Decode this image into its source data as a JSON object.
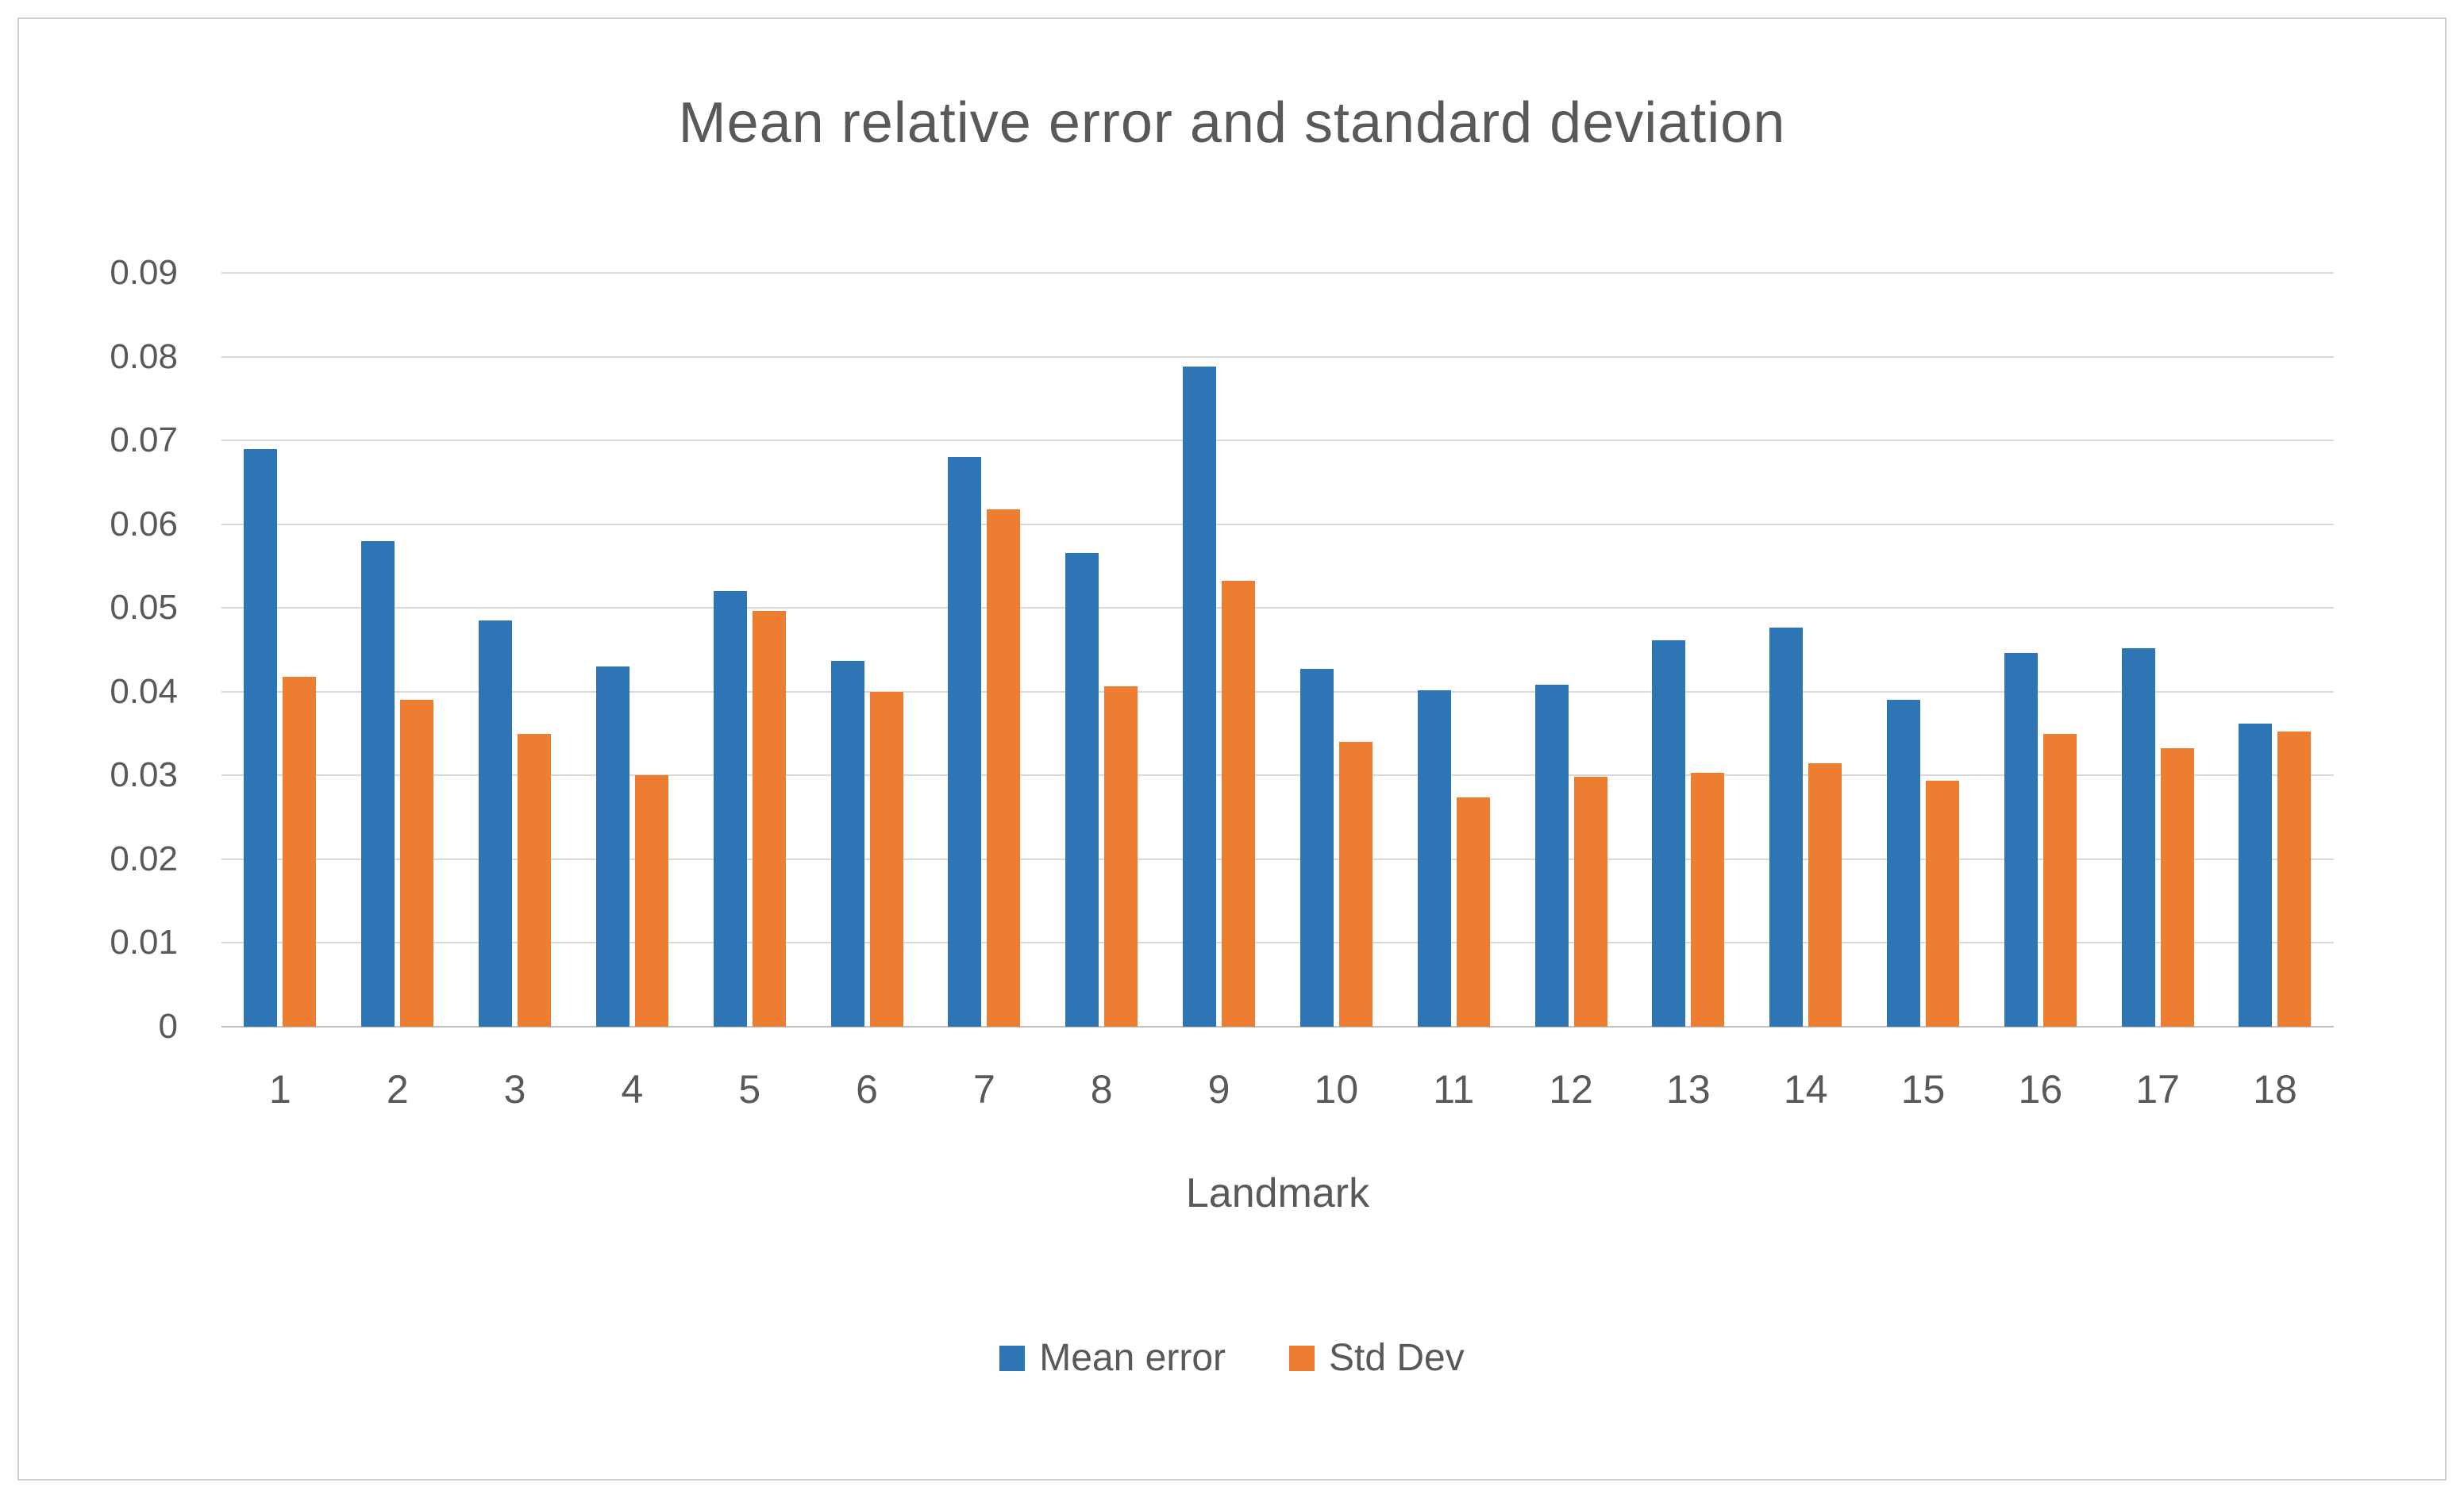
{
  "title": "Mean relative error and standard deviation",
  "x_axis_title": "Landmark",
  "colors": {
    "mean_error": "#2E75B6",
    "std_dev": "#ED7D31",
    "gridline": "#D9D9D9",
    "text": "#595959"
  },
  "legend": {
    "items": [
      {
        "label": "Mean error",
        "color": "#2E75B6"
      },
      {
        "label": "Std Dev",
        "color": "#ED7D31"
      }
    ]
  },
  "chart_data": {
    "type": "bar",
    "title": "Mean relative error and standard deviation",
    "xlabel": "Landmark",
    "ylabel": "",
    "ylim": [
      0,
      0.09
    ],
    "ytick_labels": [
      "0",
      "0.01",
      "0.02",
      "0.03",
      "0.04",
      "0.05",
      "0.06",
      "0.07",
      "0.08",
      "0.09"
    ],
    "grid": true,
    "legend_position": "bottom",
    "categories": [
      "1",
      "2",
      "3",
      "4",
      "5",
      "6",
      "7",
      "8",
      "9",
      "10",
      "11",
      "12",
      "13",
      "14",
      "15",
      "16",
      "17",
      "18"
    ],
    "series": [
      {
        "name": "Mean error",
        "color": "#2E75B6",
        "values": [
          0.069,
          0.058,
          0.0485,
          0.043,
          0.052,
          0.0437,
          0.068,
          0.0566,
          0.0788,
          0.0427,
          0.0402,
          0.0408,
          0.0461,
          0.0477,
          0.039,
          0.0446,
          0.0452,
          0.0362
        ]
      },
      {
        "name": "Std Dev",
        "color": "#ED7D31",
        "values": [
          0.0418,
          0.039,
          0.035,
          0.03,
          0.0496,
          0.04,
          0.0618,
          0.0406,
          0.0532,
          0.034,
          0.0274,
          0.0298,
          0.0303,
          0.0315,
          0.0294,
          0.035,
          0.0333,
          0.0352
        ]
      }
    ]
  }
}
